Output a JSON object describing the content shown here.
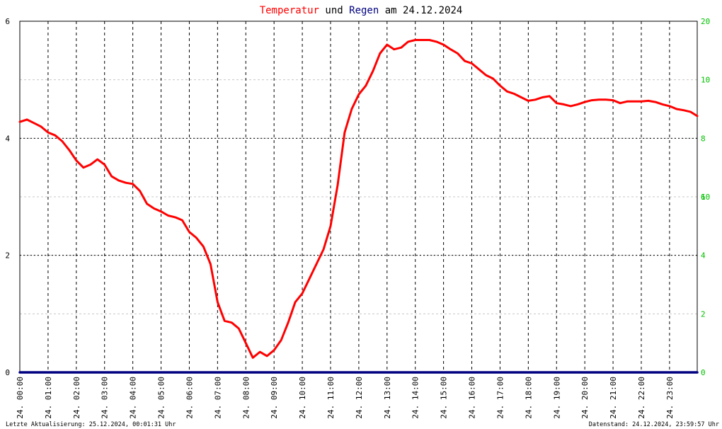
{
  "chart_data": {
    "type": "line",
    "title_parts": [
      {
        "text": "Temperatur",
        "color": "#ff0000"
      },
      {
        "text": " und ",
        "color": "#000000"
      },
      {
        "text": "Regen",
        "color": "#000080"
      },
      {
        "text": " am 24.12.2024",
        "color": "#000000"
      }
    ],
    "x_tick_labels": [
      "24. 00:00",
      "24. 01:00",
      "24. 02:00",
      "24. 03:00",
      "24. 04:00",
      "24. 05:00",
      "24. 06:00",
      "24. 07:00",
      "24. 08:00",
      "24. 09:00",
      "24. 10:00",
      "24. 11:00",
      "24. 12:00",
      "24. 13:00",
      "24. 14:00",
      "24. 15:00",
      "24. 16:00",
      "24. 17:00",
      "24. 18:00",
      "24. 19:00",
      "24. 20:00",
      "24. 21:00",
      "24. 22:00",
      "24. 23:00"
    ],
    "y_left": {
      "range": [
        0,
        6
      ],
      "ticks": [
        "0",
        "2",
        "4",
        "6"
      ],
      "color": "#000000"
    },
    "y_right_a": {
      "range": [
        0,
        20
      ],
      "ticks": [
        "0",
        "10",
        "20"
      ],
      "color": "#00c000"
    },
    "y_right_b": {
      "range": [
        0,
        12
      ],
      "ticks": [
        "2",
        "4",
        "6",
        "8",
        "10"
      ],
      "color": "#00c000"
    },
    "x_range_hours": [
      0,
      23.98
    ],
    "grid": true,
    "series": [
      {
        "name": "Temperatur",
        "color": "#ff0000",
        "points": [
          [
            0.0,
            4.28
          ],
          [
            0.25,
            4.32
          ],
          [
            0.5,
            4.26
          ],
          [
            0.75,
            4.2
          ],
          [
            1.0,
            4.1
          ],
          [
            1.25,
            4.05
          ],
          [
            1.5,
            3.95
          ],
          [
            1.75,
            3.8
          ],
          [
            2.0,
            3.62
          ],
          [
            2.25,
            3.5
          ],
          [
            2.5,
            3.55
          ],
          [
            2.75,
            3.64
          ],
          [
            3.0,
            3.55
          ],
          [
            3.25,
            3.35
          ],
          [
            3.5,
            3.28
          ],
          [
            3.75,
            3.24
          ],
          [
            4.0,
            3.22
          ],
          [
            4.25,
            3.1
          ],
          [
            4.5,
            2.88
          ],
          [
            4.75,
            2.8
          ],
          [
            5.0,
            2.75
          ],
          [
            5.25,
            2.68
          ],
          [
            5.5,
            2.65
          ],
          [
            5.75,
            2.6
          ],
          [
            6.0,
            2.4
          ],
          [
            6.25,
            2.3
          ],
          [
            6.5,
            2.15
          ],
          [
            6.75,
            1.85
          ],
          [
            7.0,
            1.2
          ],
          [
            7.25,
            0.88
          ],
          [
            7.5,
            0.85
          ],
          [
            7.75,
            0.75
          ],
          [
            8.0,
            0.5
          ],
          [
            8.25,
            0.25
          ],
          [
            8.5,
            0.35
          ],
          [
            8.75,
            0.28
          ],
          [
            9.0,
            0.38
          ],
          [
            9.25,
            0.55
          ],
          [
            9.5,
            0.85
          ],
          [
            9.75,
            1.2
          ],
          [
            10.0,
            1.35
          ],
          [
            10.25,
            1.6
          ],
          [
            10.5,
            1.85
          ],
          [
            10.75,
            2.1
          ],
          [
            11.0,
            2.5
          ],
          [
            11.25,
            3.2
          ],
          [
            11.5,
            4.1
          ],
          [
            11.75,
            4.5
          ],
          [
            12.0,
            4.75
          ],
          [
            12.25,
            4.9
          ],
          [
            12.5,
            5.15
          ],
          [
            12.75,
            5.45
          ],
          [
            13.0,
            5.6
          ],
          [
            13.25,
            5.52
          ],
          [
            13.5,
            5.55
          ],
          [
            13.75,
            5.65
          ],
          [
            14.0,
            5.68
          ],
          [
            14.25,
            5.68
          ],
          [
            14.5,
            5.68
          ],
          [
            14.75,
            5.65
          ],
          [
            15.0,
            5.6
          ],
          [
            15.25,
            5.52
          ],
          [
            15.5,
            5.45
          ],
          [
            15.75,
            5.32
          ],
          [
            16.0,
            5.28
          ],
          [
            16.25,
            5.18
          ],
          [
            16.5,
            5.08
          ],
          [
            16.75,
            5.02
          ],
          [
            17.0,
            4.9
          ],
          [
            17.25,
            4.8
          ],
          [
            17.5,
            4.76
          ],
          [
            17.75,
            4.7
          ],
          [
            18.0,
            4.64
          ],
          [
            18.25,
            4.66
          ],
          [
            18.5,
            4.7
          ],
          [
            18.75,
            4.72
          ],
          [
            19.0,
            4.6
          ],
          [
            19.25,
            4.58
          ],
          [
            19.5,
            4.55
          ],
          [
            19.75,
            4.58
          ],
          [
            20.0,
            4.62
          ],
          [
            20.25,
            4.65
          ],
          [
            20.5,
            4.66
          ],
          [
            20.75,
            4.66
          ],
          [
            21.0,
            4.65
          ],
          [
            21.25,
            4.6
          ],
          [
            21.5,
            4.63
          ],
          [
            21.75,
            4.63
          ],
          [
            22.0,
            4.63
          ],
          [
            22.25,
            4.64
          ],
          [
            22.5,
            4.62
          ],
          [
            22.75,
            4.58
          ],
          [
            23.0,
            4.55
          ],
          [
            23.25,
            4.5
          ],
          [
            23.5,
            4.48
          ],
          [
            23.75,
            4.45
          ],
          [
            23.98,
            4.38
          ]
        ]
      },
      {
        "name": "Regen",
        "color": "#000080",
        "points": [
          [
            0.0,
            0.0
          ],
          [
            23.98,
            0.0
          ]
        ]
      }
    ]
  },
  "footer": {
    "left": "Letzte Aktualisierung: 25.12.2024, 00:01:31 Uhr",
    "right": "Datenstand: 24.12.2024, 23:59:57 Uhr"
  }
}
